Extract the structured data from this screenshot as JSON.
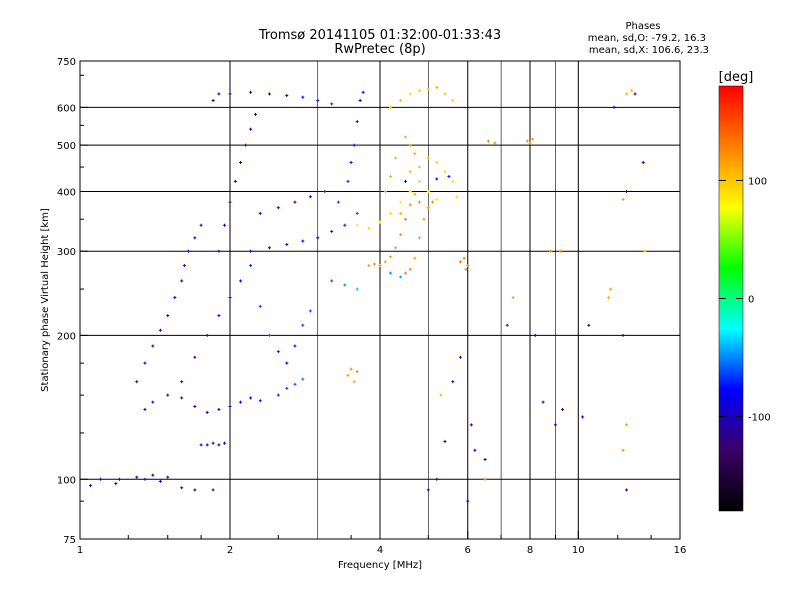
{
  "header": {
    "title_line1": "Tromsø 20141105 01:32:00-01:33:43",
    "title_line2": "RwPretec (8p)"
  },
  "stats": {
    "heading": "Phases",
    "line_o": "mean, sd,O: -79.2, 16.3",
    "line_x": "mean, sd,X: 106.6, 23.3"
  },
  "colorbar": {
    "unit_label": "[deg]",
    "range": [
      -180,
      180
    ],
    "ticks": [
      {
        "label": "100",
        "value": 100
      },
      {
        "label": "0",
        "value": 0
      },
      {
        "label": "-100",
        "value": -100
      }
    ],
    "colors": [
      "#000000",
      "#3a0066",
      "#0000ff",
      "#00ffff",
      "#00ff00",
      "#ffff00",
      "#ff8000",
      "#ff0000"
    ]
  },
  "chart_data": {
    "type": "scatter",
    "title": "Tromsø 20141105 01:32:00-01:33:43",
    "subtitle": "RwPretec (8p)",
    "xlabel": "Frequency [MHz]",
    "ylabel": "Stationary phase Virtual Height [km]",
    "xscale": "log",
    "yscale": "log",
    "xlim": [
      1,
      16
    ],
    "ylim": [
      75,
      750
    ],
    "grid": true,
    "xticks": [
      {
        "label": "1",
        "value": 1
      },
      {
        "label": "2",
        "value": 2
      },
      {
        "label": "4",
        "value": 4
      },
      {
        "label": "6",
        "value": 6
      },
      {
        "label": "8",
        "value": 8
      },
      {
        "label": "10",
        "value": 10
      },
      {
        "label": "16",
        "value": 16
      }
    ],
    "xminor": [
      3,
      5,
      7,
      9
    ],
    "yticks": [
      {
        "label": "750",
        "value": 750
      },
      {
        "label": "600",
        "value": 600
      },
      {
        "label": "500",
        "value": 500
      },
      {
        "label": "400",
        "value": 400
      },
      {
        "label": "300",
        "value": 300
      },
      {
        "label": "200",
        "value": 200
      },
      {
        "label": "100",
        "value": 100
      },
      {
        "label": "75",
        "value": 75
      }
    ],
    "color_variable": "phase [deg]",
    "series": [
      {
        "mode": "O",
        "points": [
          [
            1.05,
            97,
            -110
          ],
          [
            1.1,
            100,
            -90
          ],
          [
            1.2,
            100,
            -100
          ],
          [
            1.3,
            101,
            -105
          ],
          [
            1.35,
            100,
            -95
          ],
          [
            1.4,
            102,
            -110
          ],
          [
            1.45,
            99,
            -100
          ],
          [
            1.5,
            101,
            -90
          ],
          [
            1.18,
            98,
            -80
          ],
          [
            1.6,
            96,
            -115
          ],
          [
            1.7,
            95,
            -100
          ],
          [
            1.85,
            95,
            -90
          ],
          [
            1.75,
            118,
            -105
          ],
          [
            1.8,
            118,
            -100
          ],
          [
            1.85,
            119,
            -95
          ],
          [
            1.9,
            118,
            -110
          ],
          [
            1.95,
            119,
            -100
          ],
          [
            1.35,
            140,
            -105
          ],
          [
            1.4,
            145,
            -100
          ],
          [
            1.5,
            150,
            -95
          ],
          [
            1.6,
            148,
            -110
          ],
          [
            1.7,
            142,
            -90
          ],
          [
            1.8,
            138,
            -100
          ],
          [
            1.9,
            140,
            -105
          ],
          [
            2.0,
            142,
            -95
          ],
          [
            2.1,
            145,
            -85
          ],
          [
            2.2,
            148,
            -80
          ],
          [
            2.3,
            146,
            -75
          ],
          [
            2.5,
            150,
            -70
          ],
          [
            2.6,
            155,
            -65
          ],
          [
            2.7,
            158,
            -60
          ],
          [
            2.8,
            162,
            -55
          ],
          [
            1.3,
            160,
            -110
          ],
          [
            1.35,
            175,
            -105
          ],
          [
            1.4,
            190,
            -100
          ],
          [
            1.45,
            205,
            -95
          ],
          [
            1.5,
            220,
            -110
          ],
          [
            1.55,
            240,
            -100
          ],
          [
            1.6,
            260,
            -105
          ],
          [
            1.62,
            280,
            -95
          ],
          [
            1.65,
            300,
            -90
          ],
          [
            1.7,
            320,
            -100
          ],
          [
            1.75,
            340,
            -110
          ],
          [
            1.6,
            160,
            -90
          ],
          [
            1.7,
            180,
            -95
          ],
          [
            1.8,
            200,
            -100
          ],
          [
            1.9,
            220,
            -85
          ],
          [
            2.0,
            240,
            -80
          ],
          [
            2.1,
            260,
            -75
          ],
          [
            2.2,
            280,
            -70
          ],
          [
            2.3,
            230,
            -65
          ],
          [
            2.4,
            200,
            -60
          ],
          [
            2.5,
            185,
            -70
          ],
          [
            2.6,
            175,
            -80
          ],
          [
            2.7,
            190,
            -75
          ],
          [
            2.8,
            210,
            -65
          ],
          [
            2.9,
            225,
            -60
          ],
          [
            1.9,
            300,
            -105
          ],
          [
            1.95,
            340,
            -100
          ],
          [
            2.0,
            380,
            -95
          ],
          [
            2.05,
            420,
            -110
          ],
          [
            2.1,
            460,
            -100
          ],
          [
            2.15,
            500,
            -105
          ],
          [
            2.2,
            540,
            -95
          ],
          [
            2.25,
            580,
            -100
          ],
          [
            1.85,
            620,
            -110
          ],
          [
            1.9,
            640,
            -105
          ],
          [
            2.0,
            640,
            -95
          ],
          [
            2.2,
            645,
            -100
          ],
          [
            2.4,
            640,
            -90
          ],
          [
            2.6,
            635,
            -85
          ],
          [
            2.8,
            630,
            -80
          ],
          [
            3.0,
            620,
            -75
          ],
          [
            3.2,
            610,
            -70
          ],
          [
            2.2,
            300,
            -100
          ],
          [
            2.4,
            305,
            -95
          ],
          [
            2.6,
            310,
            -90
          ],
          [
            2.8,
            315,
            -85
          ],
          [
            3.0,
            320,
            -80
          ],
          [
            3.2,
            330,
            -75
          ],
          [
            3.4,
            340,
            -70
          ],
          [
            3.6,
            360,
            -60
          ],
          [
            3.3,
            380,
            -65
          ],
          [
            3.45,
            420,
            -70
          ],
          [
            3.5,
            460,
            -75
          ],
          [
            3.55,
            500,
            -80
          ],
          [
            3.6,
            560,
            -85
          ],
          [
            3.65,
            620,
            -90
          ],
          [
            3.7,
            645,
            -80
          ],
          [
            2.3,
            360,
            -100
          ],
          [
            2.5,
            370,
            -95
          ],
          [
            2.7,
            380,
            -90
          ],
          [
            2.9,
            390,
            -80
          ],
          [
            3.1,
            400,
            -70
          ],
          [
            3.2,
            260,
            -60
          ],
          [
            3.4,
            255,
            -50
          ],
          [
            3.6,
            250,
            -40
          ],
          [
            4.2,
            270,
            -50
          ],
          [
            4.4,
            265,
            -45
          ],
          [
            5.2,
            100,
            -95
          ],
          [
            5.4,
            120,
            -100
          ],
          [
            5.6,
            160,
            -90
          ],
          [
            5.8,
            180,
            -95
          ],
          [
            6.0,
            90,
            -100
          ],
          [
            6.1,
            130,
            -85
          ],
          [
            6.5,
            110,
            -90
          ],
          [
            7.2,
            210,
            -70
          ],
          [
            8.2,
            200,
            -100
          ],
          [
            9.0,
            130,
            -90
          ],
          [
            10.5,
            210,
            -110
          ],
          [
            12.5,
            400,
            -95
          ],
          [
            12.5,
            95,
            -100
          ],
          [
            13.0,
            640,
            -90
          ],
          [
            13.5,
            460,
            -100
          ],
          [
            11.8,
            600,
            -85
          ],
          [
            12.3,
            200,
            -80
          ],
          [
            8.5,
            145,
            -95
          ],
          [
            9.3,
            140,
            -100
          ],
          [
            10.2,
            135,
            -90
          ],
          [
            6.2,
            115,
            -95
          ],
          [
            5.0,
            95,
            -100
          ],
          [
            4.0,
            400,
            -85
          ],
          [
            4.5,
            420,
            -80
          ],
          [
            5.2,
            425,
            -75
          ],
          [
            5.5,
            430,
            -70
          ]
        ]
      },
      {
        "mode": "X",
        "points": [
          [
            3.45,
            165,
            120
          ],
          [
            3.5,
            170,
            125
          ],
          [
            3.55,
            160,
            115
          ],
          [
            3.6,
            168,
            130
          ],
          [
            3.8,
            280,
            120
          ],
          [
            3.9,
            282,
            125
          ],
          [
            4.0,
            280,
            130
          ],
          [
            4.1,
            285,
            120
          ],
          [
            4.2,
            292,
            118
          ],
          [
            4.3,
            305,
            122
          ],
          [
            4.4,
            325,
            125
          ],
          [
            4.5,
            350,
            130
          ],
          [
            4.6,
            375,
            128
          ],
          [
            4.7,
            395,
            120
          ],
          [
            4.8,
            380,
            125
          ],
          [
            4.5,
            270,
            130
          ],
          [
            4.6,
            275,
            125
          ],
          [
            4.7,
            290,
            120
          ],
          [
            4.8,
            320,
            118
          ],
          [
            4.9,
            350,
            122
          ],
          [
            5.0,
            370,
            125
          ],
          [
            5.1,
            380,
            130
          ],
          [
            3.6,
            340,
            90
          ],
          [
            3.8,
            335,
            95
          ],
          [
            4.0,
            345,
            88
          ],
          [
            4.2,
            360,
            92
          ],
          [
            4.4,
            380,
            85
          ],
          [
            4.6,
            400,
            90
          ],
          [
            4.8,
            420,
            95
          ],
          [
            5.0,
            400,
            85
          ],
          [
            5.2,
            385,
            88
          ],
          [
            4.1,
            400,
            115
          ],
          [
            4.2,
            430,
            110
          ],
          [
            4.3,
            470,
            108
          ],
          [
            4.5,
            520,
            112
          ],
          [
            4.6,
            500,
            118
          ],
          [
            4.7,
            480,
            115
          ],
          [
            4.4,
            360,
            110
          ],
          [
            4.6,
            440,
            105
          ],
          [
            4.8,
            450,
            108
          ],
          [
            5.0,
            470,
            110
          ],
          [
            5.2,
            460,
            100
          ],
          [
            5.4,
            440,
            95
          ],
          [
            5.6,
            420,
            92
          ],
          [
            5.7,
            390,
            90
          ],
          [
            5.8,
            285,
            135
          ],
          [
            5.9,
            290,
            130
          ],
          [
            6.0,
            280,
            128
          ],
          [
            5.95,
            275,
            132
          ],
          [
            4.2,
            600,
            100
          ],
          [
            4.4,
            620,
            105
          ],
          [
            4.6,
            640,
            95
          ],
          [
            4.8,
            650,
            100
          ],
          [
            5.0,
            655,
            108
          ],
          [
            5.2,
            660,
            112
          ],
          [
            5.4,
            640,
            105
          ],
          [
            5.6,
            620,
            98
          ],
          [
            6.6,
            510,
            130
          ],
          [
            6.8,
            505,
            125
          ],
          [
            7.9,
            510,
            125
          ],
          [
            8.0,
            505,
            128
          ],
          [
            8.1,
            515,
            122
          ],
          [
            8.8,
            300,
            130
          ],
          [
            9.2,
            300,
            128
          ],
          [
            12.5,
            640,
            110
          ],
          [
            12.8,
            650,
            105
          ],
          [
            12.3,
            385,
            120
          ],
          [
            13.6,
            300,
            100
          ],
          [
            11.5,
            240,
            110
          ],
          [
            11.6,
            250,
            115
          ],
          [
            6.5,
            100,
            120
          ],
          [
            7.4,
            240,
            118
          ],
          [
            12.3,
            115,
            125
          ],
          [
            12.5,
            130,
            120
          ],
          [
            5.3,
            150,
            110
          ]
        ]
      }
    ]
  }
}
